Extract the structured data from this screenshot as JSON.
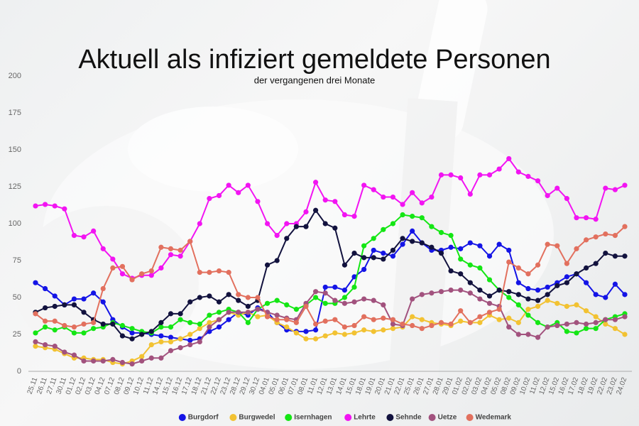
{
  "chart_data": {
    "type": "line",
    "title": "Aktuell als infiziert gemeldete Personen",
    "subtitle": "der vergangenen drei Monate",
    "categories": [
      "25.11",
      "26.11",
      "27.11",
      "30.11",
      "01.12",
      "02.12",
      "03.12",
      "04.12",
      "07.12",
      "08.12",
      "09.12",
      "10.12",
      "11.12",
      "14.12",
      "15.12",
      "16.12",
      "17.12",
      "18.12",
      "21.12",
      "22.12",
      "23.12",
      "28.12",
      "29.12",
      "30.12",
      "04.01",
      "05.01",
      "06.01",
      "07.01",
      "08.01",
      "11.01",
      "12.01",
      "13.01",
      "14.01",
      "15.01",
      "18.01",
      "19.01",
      "20.01",
      "21.01",
      "22.01",
      "25.01",
      "26.01",
      "27.01",
      "28.01",
      "29.01",
      "01.02",
      "02.02",
      "03.02",
      "04.02",
      "05.02",
      "08.02",
      "09.02",
      "10.02",
      "11.02",
      "12.02",
      "15.02",
      "16.02",
      "17.02",
      "18.02",
      "19.02",
      "22.02",
      "23.02",
      "24.02"
    ],
    "ylim": [
      0,
      200
    ],
    "yticks": [
      0,
      25,
      50,
      75,
      100,
      125,
      150,
      175,
      200
    ],
    "grid": false,
    "legend": "bottom",
    "series": [
      {
        "name": "Burgdorf",
        "color": "#1414e6",
        "values": [
          60,
          56,
          51,
          45,
          49,
          49,
          53,
          47,
          35,
          30,
          26,
          26,
          25,
          24,
          23,
          22,
          21,
          22,
          27,
          30,
          35,
          40,
          38,
          43,
          40,
          33,
          28,
          27,
          27,
          28,
          57,
          57,
          55,
          64,
          69,
          82,
          80,
          78,
          86,
          95,
          87,
          82,
          82,
          84,
          83,
          87,
          85,
          78,
          86,
          82,
          60,
          56,
          55,
          57,
          60,
          64,
          66,
          60,
          52,
          50,
          59,
          52
        ]
      },
      {
        "name": "Burgwedel",
        "color": "#f2c232",
        "values": [
          17,
          16,
          15,
          12,
          9,
          9,
          8,
          8,
          6,
          5,
          7,
          10,
          18,
          20,
          20,
          22,
          25,
          29,
          33,
          35,
          40,
          38,
          40,
          37,
          38,
          33,
          30,
          26,
          22,
          22,
          24,
          26,
          25,
          26,
          28,
          27,
          28,
          29,
          30,
          37,
          35,
          33,
          32,
          31,
          34,
          33,
          33,
          38,
          35,
          36,
          33,
          42,
          44,
          48,
          46,
          44,
          45,
          41,
          37,
          32,
          29,
          25
        ]
      },
      {
        "name": "Isernhagen",
        "color": "#14e614",
        "values": [
          26,
          30,
          28,
          30,
          26,
          26,
          29,
          30,
          33,
          31,
          29,
          27,
          26,
          30,
          30,
          35,
          33,
          32,
          38,
          40,
          42,
          40,
          33,
          42,
          46,
          48,
          45,
          42,
          45,
          50,
          46,
          46,
          50,
          57,
          85,
          90,
          96,
          100,
          106,
          105,
          104,
          98,
          94,
          92,
          76,
          72,
          70,
          62,
          55,
          50,
          45,
          38,
          33,
          30,
          33,
          27,
          26,
          29,
          29,
          35,
          37,
          39
        ]
      },
      {
        "name": "Lehrte",
        "color": "#f214f2",
        "values": [
          112,
          113,
          112,
          110,
          92,
          91,
          95,
          83,
          76,
          66,
          63,
          65,
          65,
          70,
          79,
          78,
          88,
          100,
          117,
          119,
          126,
          121,
          126,
          115,
          100,
          92,
          100,
          100,
          108,
          128,
          116,
          115,
          106,
          105,
          126,
          123,
          118,
          118,
          113,
          121,
          114,
          118,
          133,
          133,
          131,
          120,
          133,
          133,
          137,
          144,
          135,
          132,
          129,
          119,
          124,
          117,
          104,
          104,
          103,
          124,
          123,
          126
        ]
      },
      {
        "name": "Sehnde",
        "color": "#12123e",
        "values": [
          40,
          43,
          44,
          45,
          45,
          40,
          35,
          32,
          32,
          24,
          22,
          25,
          27,
          33,
          39,
          39,
          47,
          50,
          51,
          47,
          52,
          48,
          44,
          48,
          72,
          75,
          90,
          98,
          98,
          109,
          100,
          97,
          72,
          80,
          77,
          77,
          76,
          82,
          90,
          88,
          87,
          84,
          80,
          68,
          66,
          60,
          55,
          51,
          55,
          54,
          52,
          49,
          48,
          52,
          58,
          60,
          66,
          70,
          73,
          80,
          78,
          78
        ]
      },
      {
        "name": "Uetze",
        "color": "#a2527e",
        "values": [
          20,
          18,
          17,
          13,
          11,
          7,
          7,
          7,
          8,
          6,
          5,
          7,
          9,
          9,
          14,
          16,
          18,
          20,
          30,
          35,
          40,
          40,
          40,
          42,
          40,
          38,
          36,
          35,
          46,
          54,
          53,
          48,
          46,
          47,
          49,
          48,
          45,
          32,
          31,
          49,
          52,
          53,
          54,
          55,
          55,
          53,
          49,
          46,
          44,
          30,
          25,
          25,
          23,
          30,
          31,
          32,
          33,
          32,
          33,
          35,
          35,
          37
        ]
      },
      {
        "name": "Wedemark",
        "color": "#e2705e",
        "values": [
          39,
          34,
          34,
          31,
          30,
          32,
          33,
          56,
          70,
          71,
          62,
          66,
          68,
          84,
          83,
          82,
          88,
          67,
          67,
          68,
          67,
          52,
          50,
          50,
          37,
          35,
          35,
          33,
          44,
          32,
          34,
          35,
          30,
          31,
          37,
          35,
          36,
          35,
          32,
          31,
          29,
          31,
          33,
          32,
          41,
          33,
          37,
          40,
          42,
          74,
          70,
          66,
          72,
          86,
          85,
          73,
          83,
          89,
          91,
          93,
          92,
          98
        ]
      }
    ]
  }
}
